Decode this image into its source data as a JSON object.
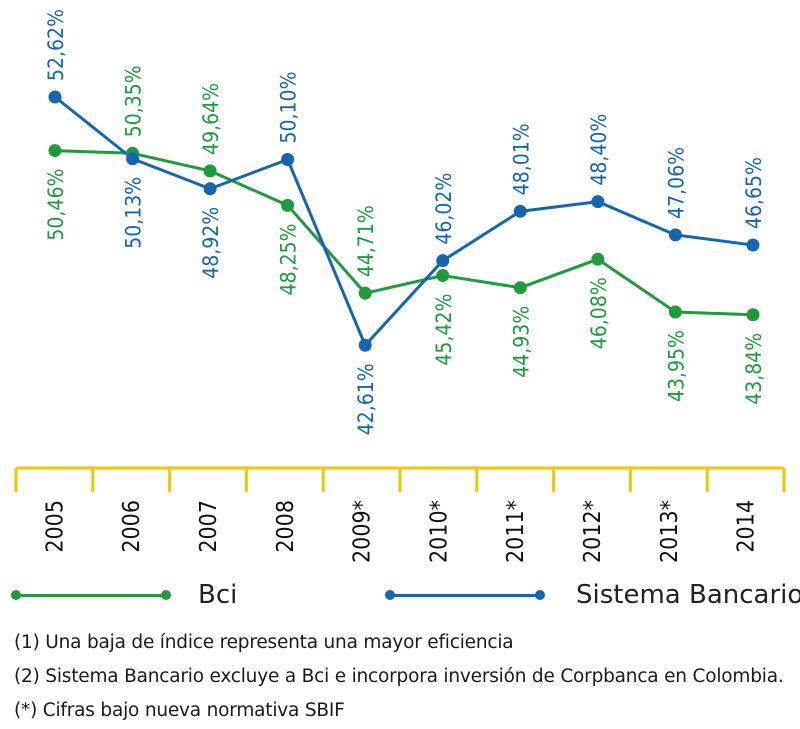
{
  "chart_data": {
    "type": "line",
    "categories": [
      "2005",
      "2006",
      "2007",
      "2008",
      "2009*",
      "2010*",
      "2011*",
      "2012*",
      "2013*",
      "2014"
    ],
    "series": [
      {
        "name": "Bci",
        "color": "#1f9a3e",
        "values": [
          50.46,
          50.35,
          49.64,
          48.25,
          44.71,
          45.42,
          44.93,
          46.08,
          43.95,
          43.84
        ],
        "labels": [
          "50,46%",
          "50,35%",
          "49,64%",
          "48,25%",
          "44,71%",
          "45,42%",
          "44,93%",
          "46,08%",
          "43,95%",
          "43,84%"
        ]
      },
      {
        "name": "Sistema Bancario",
        "color": "#1566b0",
        "values": [
          52.62,
          50.13,
          48.92,
          50.1,
          42.61,
          46.02,
          48.01,
          48.4,
          47.06,
          46.65
        ],
        "labels": [
          "52,62%",
          "50,13%",
          "48,92%",
          "50,10%",
          "42,61%",
          "46,02%",
          "48,01%",
          "48,40%",
          "47,06%",
          "46,65%"
        ]
      }
    ],
    "axis_color": "#f2c500",
    "xlabel": "",
    "ylabel": "",
    "grid": false,
    "legend_position": "bottom"
  },
  "legend": {
    "bci_label": "Bci",
    "sistema_label": "Sistema Bancario"
  },
  "notes": [
    "(1) Una baja de índice representa una mayor eficiencia",
    "(2) Sistema Bancario excluye a Bci e incorpora inversión de Corpbanca en Colombia.",
    "(*) Cifras bajo nueva normativa SBIF"
  ]
}
